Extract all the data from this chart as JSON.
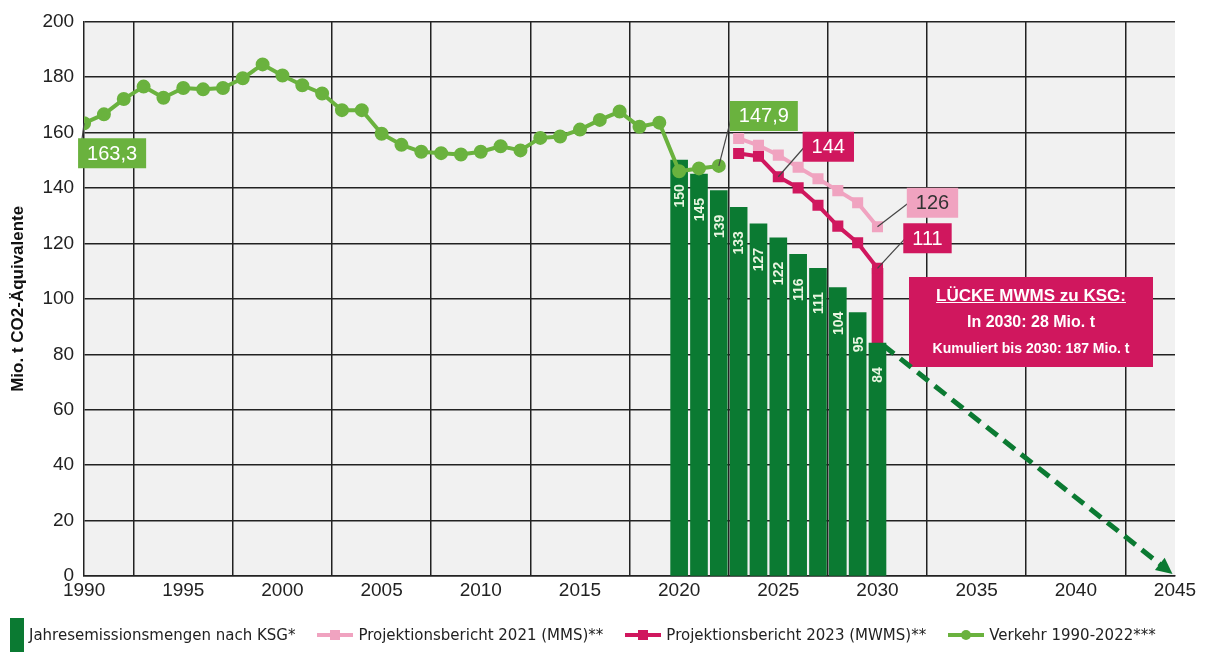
{
  "chart_data": {
    "type": "line",
    "ylabel": "Mio. t CO2-Äquivalente",
    "xlim": [
      1990,
      2045
    ],
    "xticks": [
      1990,
      1995,
      2000,
      2005,
      2010,
      2015,
      2020,
      2025,
      2030,
      2035,
      2040,
      2045
    ],
    "ylim": [
      0,
      200
    ],
    "yticks": [
      0,
      20,
      40,
      60,
      80,
      100,
      120,
      140,
      160,
      180,
      200
    ],
    "grid": true,
    "legend": "bottom",
    "series": [
      {
        "name": "Jahresemissionsmengen nach KSG*",
        "type": "bar",
        "color": "#0b7a32",
        "x": [
          2020,
          2021,
          2022,
          2023,
          2024,
          2025,
          2026,
          2027,
          2028,
          2029,
          2030
        ],
        "values": [
          150,
          145,
          139,
          133,
          127,
          122,
          116,
          111,
          104,
          95,
          84
        ],
        "value_labels": [
          "150",
          "145",
          "139",
          "133",
          "127",
          "122",
          "116",
          "111",
          "104",
          "95",
          "84"
        ]
      },
      {
        "name": "Projektionsbericht 2021 (MMS)**",
        "marker": "square",
        "color": "#f0a3c0",
        "x": [
          2023,
          2024,
          2025,
          2026,
          2027,
          2028,
          2029,
          2030
        ],
        "values": [
          157.8,
          155.3,
          151.8,
          147.4,
          143.3,
          139,
          134.6,
          126
        ],
        "value_labels": [
          null,
          null,
          null,
          null,
          null,
          null,
          null,
          "126"
        ]
      },
      {
        "name": "Projektionsbericht 2023 (MWMS)**",
        "marker": "square",
        "color": "#d0175e",
        "x": [
          2023,
          2024,
          2025,
          2026,
          2027,
          2028,
          2029,
          2030
        ],
        "values": [
          152.4,
          151.4,
          144,
          140,
          133.7,
          126.2,
          120.2,
          111
        ],
        "value_labels": [
          null,
          null,
          "144",
          null,
          null,
          null,
          null,
          "111"
        ]
      },
      {
        "name": "Verkehr 1990-2022***",
        "marker": "circle",
        "color": "#6ab23e",
        "x": [
          1990,
          1991,
          1992,
          1993,
          1994,
          1995,
          1996,
          1997,
          1998,
          1999,
          2000,
          2001,
          2002,
          2003,
          2004,
          2005,
          2006,
          2007,
          2008,
          2009,
          2010,
          2011,
          2012,
          2013,
          2014,
          2015,
          2016,
          2017,
          2018,
          2019,
          2020,
          2021,
          2022
        ],
        "values": [
          163.3,
          166.5,
          172,
          176.5,
          172.5,
          176,
          175.5,
          176,
          179.5,
          184.5,
          180.5,
          177,
          174,
          168,
          168,
          159.5,
          155.5,
          153,
          152.5,
          152,
          153,
          155,
          153.5,
          158,
          158.5,
          161,
          164.5,
          167.5,
          162,
          163.5,
          146,
          147,
          147.9
        ],
        "value_labels": [
          "163,3",
          null,
          null,
          null,
          null,
          null,
          null,
          null,
          null,
          null,
          null,
          null,
          null,
          null,
          null,
          null,
          null,
          null,
          null,
          null,
          null,
          null,
          null,
          null,
          null,
          null,
          null,
          null,
          null,
          null,
          null,
          null,
          "147,9"
        ]
      },
      {
        "type": "bar",
        "color": "#d0175e",
        "x": [
          2030
        ],
        "base": [
          84
        ],
        "values": [
          27
        ]
      }
    ],
    "annotations": [
      "LÜCKE MWMS zu KSG:",
      "In 2030: 28 Mio. t",
      "Kumuliert bis 2030: 187 Mio. t"
    ]
  }
}
